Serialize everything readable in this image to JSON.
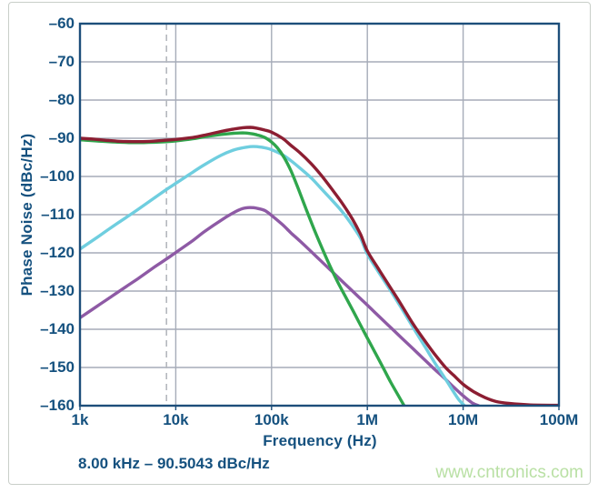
{
  "page": {
    "watermark": "www.cntronics.com"
  },
  "chart_data": {
    "type": "line",
    "title": "",
    "xlabel": "Frequency (Hz)",
    "ylabel": "Phase Noise (dBc/Hz)",
    "x_scale": "log",
    "xlim": [
      1000,
      100000000
    ],
    "ylim": [
      -160,
      -60
    ],
    "grid": true,
    "legend_position": "none",
    "axis_color": "#1d4e7a",
    "grid_color": "#a6acb8",
    "x_ticks": [
      {
        "value": 1000,
        "label": "1k"
      },
      {
        "value": 10000,
        "label": "10k"
      },
      {
        "value": 100000,
        "label": "100k"
      },
      {
        "value": 1000000,
        "label": "1M"
      },
      {
        "value": 10000000,
        "label": "10M"
      },
      {
        "value": 100000000,
        "label": "100M"
      }
    ],
    "y_ticks": [
      {
        "value": -60,
        "label": "–60"
      },
      {
        "value": -70,
        "label": "–70"
      },
      {
        "value": -80,
        "label": "–80"
      },
      {
        "value": -90,
        "label": "–90"
      },
      {
        "value": -100,
        "label": "–100"
      },
      {
        "value": -110,
        "label": "–110"
      },
      {
        "value": -120,
        "label": "–120"
      },
      {
        "value": -130,
        "label": "–130"
      },
      {
        "value": -140,
        "label": "–140"
      },
      {
        "value": -150,
        "label": "–150"
      },
      {
        "value": -160,
        "label": "–160"
      }
    ],
    "marker": {
      "frequency_hz": 8000,
      "style": "dashed-vertical",
      "color": "#b4b8be",
      "label": "8.00 kHz – 90.5043 dBc/Hz"
    },
    "series": [
      {
        "name": "purple-curve",
        "color": "#8e5aa5",
        "points": [
          [
            1000.0,
            -137
          ],
          [
            1500.0,
            -134
          ],
          [
            2000.0,
            -131.9
          ],
          [
            3000.0,
            -128.9
          ],
          [
            4000.0,
            -126.8
          ],
          [
            6000.0,
            -123.7
          ],
          [
            8000.0,
            -121.6
          ],
          [
            10000.0,
            -119.9
          ],
          [
            15000.0,
            -116.8
          ],
          [
            20000.0,
            -114.4
          ],
          [
            30000.0,
            -111.4
          ],
          [
            40000.0,
            -109.5
          ],
          [
            50000.0,
            -108.4
          ],
          [
            60000.0,
            -108.15
          ],
          [
            70000.0,
            -108.3
          ],
          [
            85000.0,
            -108.9
          ],
          [
            100000.0,
            -110.2
          ],
          [
            130000.0,
            -112.6
          ],
          [
            160000.0,
            -114.8
          ],
          [
            200000.0,
            -117
          ],
          [
            260000.0,
            -119.7
          ],
          [
            330000.0,
            -122.2
          ],
          [
            420000.0,
            -124.7
          ],
          [
            550000.0,
            -127.5
          ],
          [
            700000.0,
            -130
          ],
          [
            900000.0,
            -132.6
          ],
          [
            1200000.0,
            -135.6
          ],
          [
            1600000.0,
            -138.6
          ],
          [
            2200000.0,
            -141.9
          ],
          [
            3000000.0,
            -145.1
          ],
          [
            4000000.0,
            -148.1
          ],
          [
            5000000.0,
            -150.4
          ],
          [
            6500000.0,
            -153
          ],
          [
            8000000.0,
            -155.2
          ],
          [
            10000000.0,
            -157.4
          ],
          [
            12500000.0,
            -159.3
          ],
          [
            14500000.0,
            -160
          ]
        ]
      },
      {
        "name": "cyan-curve",
        "color": "#6fcedf",
        "points": [
          [
            1000.0,
            -119
          ],
          [
            1500.0,
            -116
          ],
          [
            2000.0,
            -113.8
          ],
          [
            3000.0,
            -110.8
          ],
          [
            4000.0,
            -108.7
          ],
          [
            6000.0,
            -105.6
          ],
          [
            8000.0,
            -103.4
          ],
          [
            10000.0,
            -101.8
          ],
          [
            15000.0,
            -98.9
          ],
          [
            20000.0,
            -96.9
          ],
          [
            30000.0,
            -94.4
          ],
          [
            40000.0,
            -93.1
          ],
          [
            50000.0,
            -92.5
          ],
          [
            60000.0,
            -92.2
          ],
          [
            70000.0,
            -92.2
          ],
          [
            85000.0,
            -92.5
          ],
          [
            100000.0,
            -93
          ],
          [
            130000.0,
            -94.3
          ],
          [
            160000.0,
            -95.9
          ],
          [
            200000.0,
            -97.9
          ],
          [
            260000.0,
            -100.4
          ],
          [
            330000.0,
            -103.2
          ],
          [
            420000.0,
            -106
          ],
          [
            550000.0,
            -109.3
          ],
          [
            700000.0,
            -112.9
          ],
          [
            850000.0,
            -116.2
          ],
          [
            1000000.0,
            -120.3
          ],
          [
            1300000.0,
            -124.9
          ],
          [
            1700000.0,
            -129.4
          ],
          [
            2200000.0,
            -133.9
          ],
          [
            3000000.0,
            -139.5
          ],
          [
            4000000.0,
            -144.6
          ],
          [
            5000000.0,
            -148.6
          ],
          [
            6000000.0,
            -151.6
          ],
          [
            7000000.0,
            -154.2
          ],
          [
            8000000.0,
            -156.5
          ],
          [
            9000000.0,
            -158.4
          ],
          [
            10300000.0,
            -160
          ]
        ]
      },
      {
        "name": "green-curve",
        "color": "#2fa64c",
        "points": [
          [
            1000.0,
            -90.4
          ],
          [
            2000.0,
            -90.9
          ],
          [
            3500.0,
            -91.15
          ],
          [
            6000.0,
            -91.05
          ],
          [
            8000.0,
            -90.9
          ],
          [
            10000.0,
            -90.7
          ],
          [
            15000.0,
            -90.15
          ],
          [
            20000.0,
            -89.6
          ],
          [
            30000.0,
            -89
          ],
          [
            40000.0,
            -88.7
          ],
          [
            50000.0,
            -88.6
          ],
          [
            60000.0,
            -88.75
          ],
          [
            70000.0,
            -89.1
          ],
          [
            85000.0,
            -89.8
          ],
          [
            100000.0,
            -91
          ],
          [
            115000.0,
            -92.5
          ],
          [
            135000.0,
            -95
          ],
          [
            160000.0,
            -98.6
          ],
          [
            190000.0,
            -103.2
          ],
          [
            230000.0,
            -108.6
          ],
          [
            280000.0,
            -114
          ],
          [
            340000.0,
            -119
          ],
          [
            410000.0,
            -123.6
          ],
          [
            490000.0,
            -127.6
          ],
          [
            580000.0,
            -131.1
          ],
          [
            690000.0,
            -134.6
          ],
          [
            820000.0,
            -138.2
          ],
          [
            1000000.0,
            -142.3
          ],
          [
            1200000.0,
            -146
          ],
          [
            1450000.0,
            -149.9
          ],
          [
            1750000.0,
            -153.8
          ],
          [
            2100000.0,
            -157.3
          ],
          [
            2420000.0,
            -160
          ]
        ]
      },
      {
        "name": "maroon-curve",
        "color": "#8c1e32",
        "points": [
          [
            1000.0,
            -90
          ],
          [
            1500.0,
            -90.3
          ],
          [
            2000.0,
            -90.6
          ],
          [
            3000.0,
            -90.85
          ],
          [
            5000.0,
            -90.85
          ],
          [
            8000.0,
            -90.5
          ],
          [
            10000.0,
            -90.3
          ],
          [
            15000.0,
            -89.8
          ],
          [
            20000.0,
            -89.2
          ],
          [
            30000.0,
            -88.2
          ],
          [
            40000.0,
            -87.6
          ],
          [
            50000.0,
            -87.25
          ],
          [
            60000.0,
            -87.15
          ],
          [
            70000.0,
            -87.35
          ],
          [
            85000.0,
            -87.85
          ],
          [
            100000.0,
            -88.4
          ],
          [
            130000.0,
            -90
          ],
          [
            160000.0,
            -91.9
          ],
          [
            200000.0,
            -93.9
          ],
          [
            260000.0,
            -96.7
          ],
          [
            330000.0,
            -99.7
          ],
          [
            420000.0,
            -103.1
          ],
          [
            550000.0,
            -107.1
          ],
          [
            700000.0,
            -111.2
          ],
          [
            850000.0,
            -115.2
          ],
          [
            1000000.0,
            -119.5
          ],
          [
            1300000.0,
            -124.1
          ],
          [
            1700000.0,
            -128.7
          ],
          [
            2200000.0,
            -133.1
          ],
          [
            3000000.0,
            -138.6
          ],
          [
            4000000.0,
            -143.1
          ],
          [
            5000000.0,
            -146.4
          ],
          [
            6500000.0,
            -149.9
          ],
          [
            8000000.0,
            -152.1
          ],
          [
            10000000.0,
            -154.4
          ],
          [
            13000000.0,
            -156.4
          ],
          [
            17000000.0,
            -157.9
          ],
          [
            22000000.0,
            -158.9
          ],
          [
            30000000.0,
            -159.4
          ],
          [
            50000000.0,
            -159.8
          ],
          [
            100000000.0,
            -159.9
          ]
        ]
      }
    ]
  }
}
